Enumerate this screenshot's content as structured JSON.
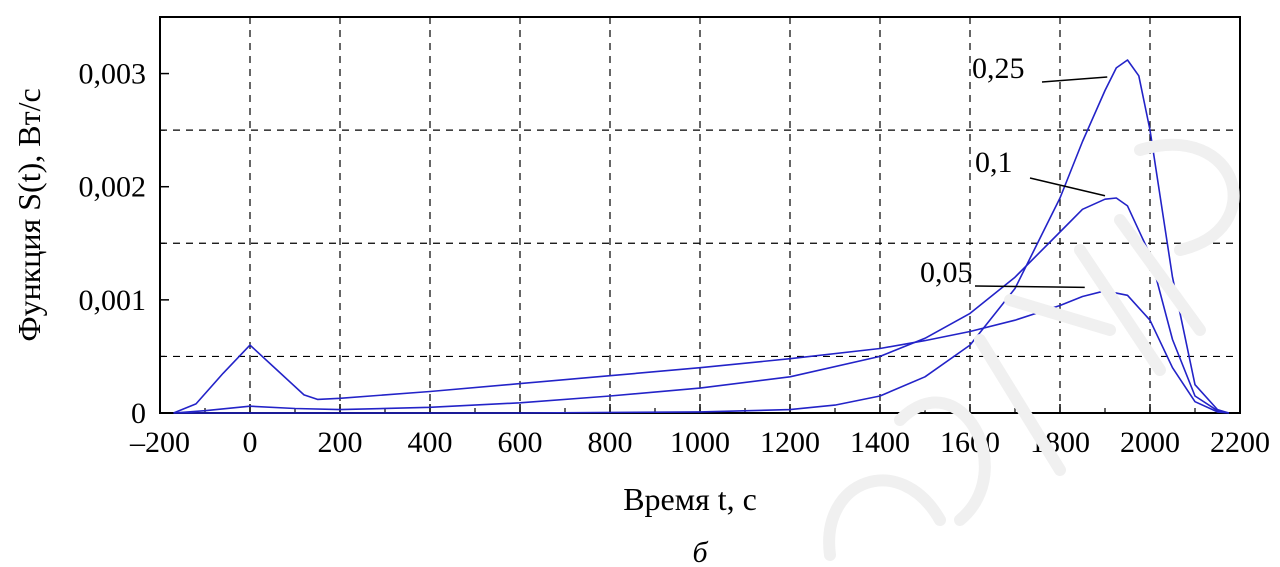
{
  "chart_data": {
    "type": "line",
    "title": "",
    "xlabel": "Время t, с",
    "ylabel": "Функция S(t), Вт/с",
    "xlim": [
      -200,
      2200
    ],
    "ylim": [
      0,
      0.0035
    ],
    "grid": true,
    "x_ticks": [
      -200,
      0,
      200,
      400,
      600,
      800,
      1000,
      1200,
      1400,
      1600,
      1800,
      2000,
      2200
    ],
    "x_tick_labels": [
      "–200",
      "0",
      "200",
      "400",
      "600",
      "800",
      "1000",
      "1200",
      "1400",
      "1600",
      "1800",
      "2000",
      "2200"
    ],
    "y_ticks": [
      0,
      0.001,
      0.002,
      0.003
    ],
    "y_tick_labels": [
      "0",
      "0,001",
      "0,002",
      "0,003"
    ],
    "y_gridlines": [
      0.0005,
      0.0015,
      0.0025
    ],
    "caption": "б",
    "line_color": "#2323c8",
    "series": [
      {
        "name": "0,05",
        "label_text": "0,05",
        "x": [
          -170,
          -120,
          -60,
          0,
          60,
          120,
          150,
          200,
          400,
          600,
          800,
          1000,
          1200,
          1400,
          1500,
          1600,
          1700,
          1800,
          1850,
          1900,
          1950,
          2000,
          2050,
          2100,
          2150,
          2175
        ],
        "y": [
          0,
          8e-05,
          0.00035,
          0.0006,
          0.00038,
          0.00016,
          0.00012,
          0.00013,
          0.00019,
          0.00026,
          0.00033,
          0.0004,
          0.00048,
          0.00057,
          0.00064,
          0.00072,
          0.00082,
          0.00095,
          0.00103,
          0.00108,
          0.00104,
          0.00082,
          0.0004,
          0.0001,
          1e-05,
          0
        ]
      },
      {
        "name": "0,1",
        "label_text": "0,1",
        "x": [
          -170,
          -100,
          0,
          100,
          200,
          400,
          600,
          800,
          1000,
          1200,
          1400,
          1500,
          1600,
          1700,
          1800,
          1850,
          1900,
          1925,
          1950,
          2000,
          2050,
          2100,
          2150,
          2175
        ],
        "y": [
          0,
          2e-05,
          6e-05,
          4e-05,
          3e-05,
          5e-05,
          9e-05,
          0.00015,
          0.00022,
          0.00032,
          0.0005,
          0.00066,
          0.00088,
          0.0012,
          0.0016,
          0.0018,
          0.00189,
          0.0019,
          0.00183,
          0.0014,
          0.00065,
          0.00015,
          2e-05,
          0
        ]
      },
      {
        "name": "0,25",
        "label_text": "0,25",
        "x": [
          -170,
          0,
          200,
          600,
          1000,
          1200,
          1300,
          1400,
          1500,
          1600,
          1700,
          1800,
          1850,
          1900,
          1925,
          1950,
          1975,
          2000,
          2050,
          2100,
          2150,
          2175
        ],
        "y": [
          0,
          0,
          0,
          0,
          1e-05,
          3e-05,
          7e-05,
          0.00015,
          0.00032,
          0.0006,
          0.0011,
          0.0019,
          0.0024,
          0.00285,
          0.00305,
          0.00312,
          0.00298,
          0.0025,
          0.0012,
          0.00025,
          3e-05,
          0
        ]
      }
    ]
  }
}
